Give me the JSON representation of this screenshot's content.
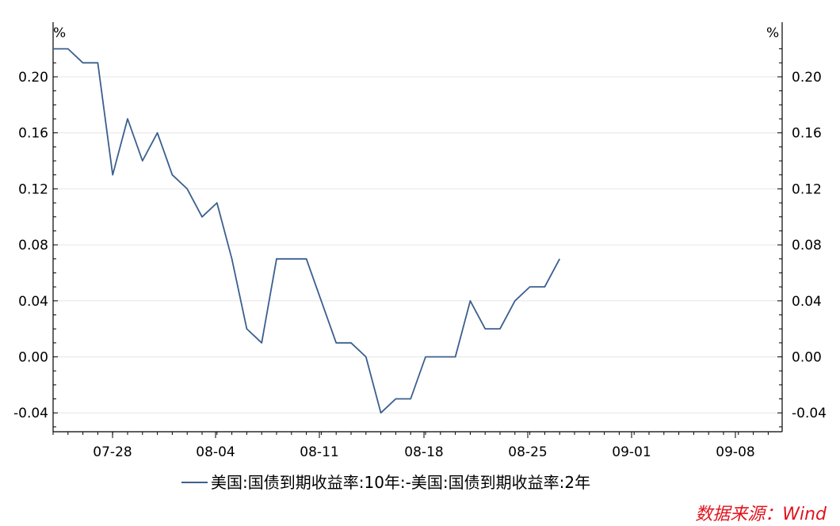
{
  "chart_data": {
    "type": "line",
    "y_unit_left": "%",
    "y_unit_right": "%",
    "ylim": [
      -0.05,
      0.22
    ],
    "y_ticks": [
      -0.04,
      0.0,
      0.04,
      0.08,
      0.12,
      0.16,
      0.2
    ],
    "y_tick_labels": [
      "-0.04",
      "0.00",
      "0.04",
      "0.08",
      "0.12",
      "0.16",
      "0.20"
    ],
    "x_tick_labels": [
      "07-28",
      "08-04",
      "08-11",
      "08-18",
      "08-25",
      "09-01",
      "09-08"
    ],
    "grid": "horizontal",
    "legend_position": "bottom",
    "series": [
      {
        "name": "美国:国债到期收益率:10年:-美国:国债到期收益率:2年",
        "color": "#3a5f8f",
        "x": [
          "2025-07-24",
          "2025-07-25",
          "2025-07-28",
          "2025-07-29",
          "2025-07-30",
          "2025-07-31",
          "2025-08-01",
          "2025-08-04",
          "2025-08-05",
          "2025-08-06",
          "2025-08-07",
          "2025-08-08",
          "2025-08-11",
          "2025-08-12",
          "2025-08-13",
          "2025-08-14",
          "2025-08-15",
          "2025-08-18",
          "2025-08-19",
          "2025-08-20",
          "2025-08-21",
          "2025-08-22",
          "2025-08-25",
          "2025-08-26",
          "2025-08-27",
          "2025-08-28",
          "2025-08-29",
          "2025-09-01",
          "2025-09-02",
          "2025-09-03",
          "2025-09-04",
          "2025-09-05",
          "2025-09-08",
          "2025-09-09",
          "2025-09-10"
        ],
        "values": [
          0.22,
          0.22,
          0.21,
          0.21,
          0.13,
          0.17,
          0.14,
          0.16,
          0.13,
          0.12,
          0.1,
          0.11,
          0.07,
          0.02,
          0.01,
          0.07,
          0.07,
          0.07,
          0.04,
          0.01,
          0.01,
          0.0,
          -0.04,
          -0.03,
          -0.03,
          0.0,
          0.0,
          0.0,
          0.04,
          0.02,
          0.02,
          0.04,
          0.05,
          0.05,
          0.07
        ]
      }
    ]
  },
  "source": "数据来源：Wind"
}
